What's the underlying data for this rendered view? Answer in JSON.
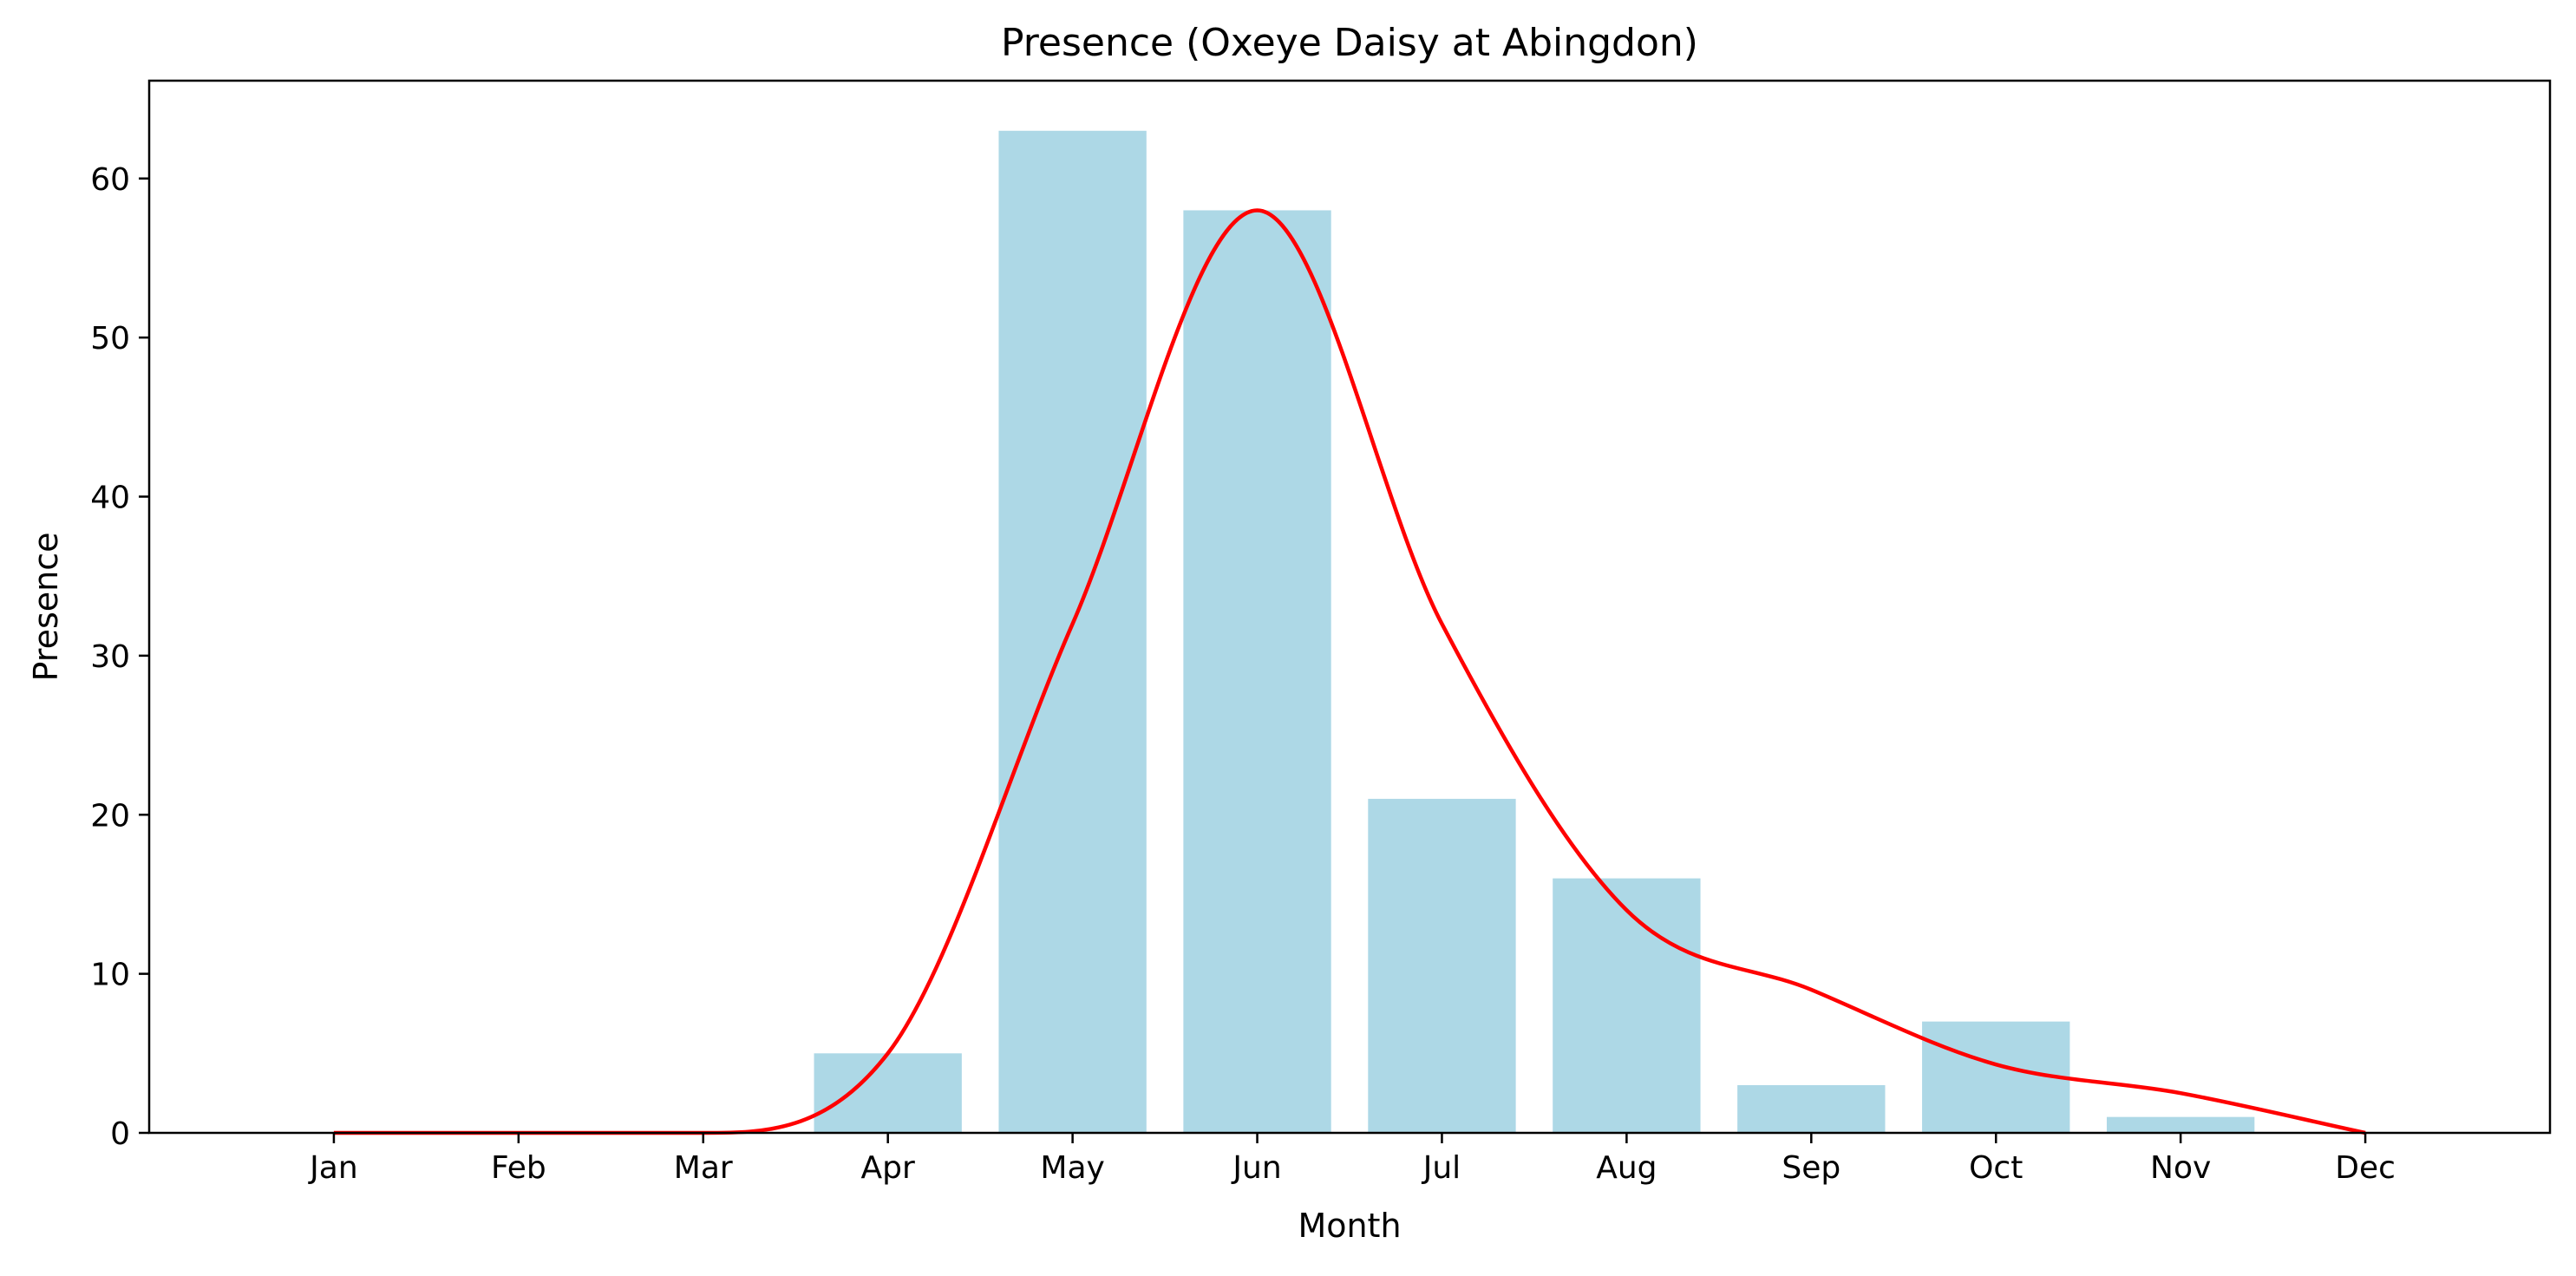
{
  "chart_data": {
    "type": "bar",
    "title": "Presence (Oxeye Daisy at Abingdon)",
    "xlabel": "Month",
    "ylabel": "Presence",
    "categories": [
      "Jan",
      "Feb",
      "Mar",
      "Apr",
      "May",
      "Jun",
      "Jul",
      "Aug",
      "Sep",
      "Oct",
      "Nov",
      "Dec"
    ],
    "series": [
      {
        "type": "bar",
        "values": [
          0,
          0,
          0,
          5,
          63,
          58,
          21,
          16,
          3,
          7,
          1,
          0
        ],
        "color": "#add8e6"
      },
      {
        "type": "line",
        "smooth": true,
        "values": [
          0,
          0,
          0,
          5,
          32,
          58,
          32,
          14,
          9,
          4.3,
          2.5,
          0
        ],
        "color": "#ff0000"
      }
    ],
    "yticks": [
      0,
      10,
      20,
      30,
      40,
      50,
      60
    ],
    "ylim": [
      0,
      66.15
    ],
    "xlim": [
      -1,
      12
    ],
    "grid": false,
    "legend": "none"
  }
}
